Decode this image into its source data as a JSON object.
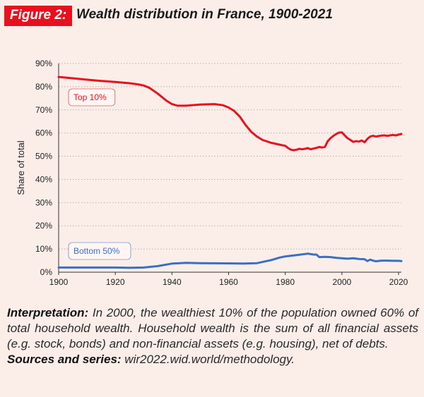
{
  "figure": {
    "label": "Figure 2:",
    "title": "Wealth distribution in France, 1900-2021"
  },
  "notes": {
    "interpretation_label": "Interpretation:",
    "interpretation_text": " In 2000, the wealthiest 10% of the population owned 60% of total household wealth. Household wealth is the sum of all financial assets (e.g. stock, bonds) and non-financial assets (e.g. housing), net of debts.",
    "sources_label": "Sources and series:",
    "sources_text": " wir2022.wid.world/methodology."
  },
  "colors": {
    "top10": "#e8101e",
    "bottom50": "#3a6fc4",
    "grid": "#b9b0ad",
    "background": "#fbeee9"
  },
  "chart_data": {
    "type": "line",
    "title": "Wealth distribution in France, 1900-2021",
    "xlabel": "",
    "ylabel": "Share of total",
    "xlim": [
      1900,
      2021
    ],
    "ylim": [
      0,
      90
    ],
    "xticks": [
      "1900",
      "1920",
      "1940",
      "1960",
      "1980",
      "2000",
      "2020"
    ],
    "yticks": [
      "0%",
      "10%",
      "20%",
      "30%",
      "40%",
      "50%",
      "60%",
      "70%",
      "80%",
      "90%"
    ],
    "grid": "horizontal dotted",
    "series": [
      {
        "name": "Top 10%",
        "label": "Top 10%",
        "color": "#e8101e",
        "x": [
          1900,
          1905,
          1910,
          1915,
          1920,
          1925,
          1928,
          1930,
          1932,
          1935,
          1938,
          1940,
          1942,
          1945,
          1950,
          1955,
          1958,
          1960,
          1962,
          1964,
          1966,
          1968,
          1970,
          1972,
          1975,
          1978,
          1980,
          1981,
          1982,
          1983,
          1984,
          1985,
          1986,
          1987,
          1988,
          1989,
          1990,
          1991,
          1992,
          1993,
          1994,
          1995,
          1996,
          1997,
          1998,
          1999,
          2000,
          2001,
          2002,
          2003,
          2004,
          2005,
          2006,
          2007,
          2008,
          2009,
          2010,
          2011,
          2012,
          2013,
          2014,
          2015,
          2016,
          2017,
          2018,
          2019,
          2020,
          2021
        ],
        "values": [
          84.2,
          83.6,
          83.0,
          82.5,
          82.0,
          81.5,
          81.0,
          80.5,
          79.5,
          77.0,
          74.0,
          72.5,
          71.8,
          71.8,
          72.3,
          72.5,
          72.0,
          71.0,
          69.5,
          67.0,
          63.5,
          60.5,
          58.5,
          57.0,
          55.8,
          55.0,
          54.5,
          53.5,
          52.8,
          52.6,
          52.8,
          53.2,
          53.0,
          53.2,
          53.5,
          53.0,
          53.3,
          53.6,
          54.0,
          53.8,
          54.0,
          56.5,
          57.8,
          58.8,
          59.6,
          60.2,
          60.3,
          59.0,
          57.8,
          57.0,
          56.2,
          56.5,
          56.3,
          56.8,
          56.0,
          57.5,
          58.5,
          58.8,
          58.5,
          58.7,
          58.9,
          59.0,
          58.8,
          59.0,
          59.2,
          59.0,
          59.3,
          59.6
        ]
      },
      {
        "name": "Bottom 50%",
        "label": "Bottom 50%",
        "color": "#3a6fc4",
        "x": [
          1900,
          1910,
          1920,
          1925,
          1930,
          1935,
          1940,
          1945,
          1950,
          1960,
          1965,
          1970,
          1975,
          1978,
          1980,
          1983,
          1985,
          1988,
          1990,
          1991,
          1992,
          1994,
          1996,
          1998,
          2000,
          2002,
          2004,
          2006,
          2008,
          2009,
          2010,
          2011,
          2012,
          2014,
          2016,
          2018,
          2020,
          2021
        ],
        "values": [
          2.0,
          2.0,
          2.0,
          1.9,
          2.0,
          2.6,
          3.7,
          4.0,
          3.9,
          3.8,
          3.7,
          3.9,
          5.2,
          6.3,
          6.8,
          7.2,
          7.5,
          8.0,
          7.6,
          7.6,
          6.5,
          6.6,
          6.5,
          6.2,
          6.0,
          5.8,
          6.0,
          5.7,
          5.6,
          4.8,
          5.4,
          5.0,
          4.7,
          5.0,
          5.0,
          4.9,
          4.9,
          4.8
        ]
      }
    ]
  }
}
